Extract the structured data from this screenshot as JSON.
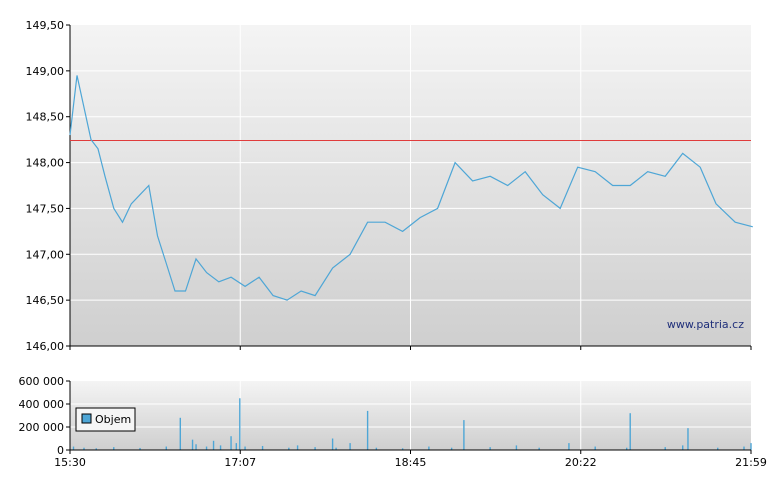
{
  "chart_data": [
    {
      "type": "line",
      "title": "",
      "xlabel": "",
      "ylabel": "",
      "ylim": [
        146.0,
        149.5
      ],
      "y_ticks": [
        "149,50",
        "149,00",
        "148,50",
        "148,00",
        "147,50",
        "147,00",
        "146,50",
        "146,00"
      ],
      "y_tick_values": [
        149.5,
        149.0,
        148.5,
        148.0,
        147.5,
        147.0,
        146.5,
        146.0
      ],
      "x_ticks": [
        "15:30",
        "17:07",
        "18:45",
        "20:22",
        "21:59"
      ],
      "reference_line": {
        "value": 148.24,
        "color": "#e03c3c"
      },
      "line_color": "#4ea6d6",
      "grid": true,
      "watermark": "www.patria.cz",
      "series": [
        {
          "x_minutes": [
            0,
            4,
            8,
            12,
            16,
            20,
            25,
            30,
            35,
            40,
            45,
            50,
            55,
            60,
            66,
            72,
            78,
            85,
            92,
            100,
            108,
            116,
            124,
            132,
            140,
            150,
            160,
            170,
            180,
            190,
            200,
            210,
            220,
            230,
            240,
            250,
            260,
            270,
            280,
            290,
            300,
            310,
            320,
            330,
            340,
            350,
            360,
            369,
            380,
            390
          ],
          "values": [
            148.3,
            148.95,
            148.6,
            148.25,
            148.15,
            147.85,
            147.5,
            147.35,
            147.55,
            147.65,
            147.75,
            147.2,
            146.9,
            146.6,
            146.6,
            146.95,
            146.8,
            146.7,
            146.75,
            146.65,
            146.75,
            146.55,
            146.5,
            146.6,
            146.55,
            146.85,
            147.0,
            147.35,
            147.35,
            147.25,
            147.4,
            147.5,
            148.0,
            147.8,
            147.85,
            147.75,
            147.9,
            147.65,
            147.5,
            147.95,
            147.9,
            147.75,
            147.75,
            147.9,
            147.85,
            148.1,
            147.95,
            147.55,
            147.35,
            147.3
          ]
        }
      ]
    },
    {
      "type": "bar",
      "title": "",
      "xlabel": "",
      "ylabel": "",
      "ylim": [
        0,
        600000
      ],
      "y_ticks": [
        "600 000",
        "400 000",
        "200 000",
        "0"
      ],
      "y_tick_values": [
        600000,
        400000,
        200000,
        0
      ],
      "x_ticks": [
        "15:30",
        "17:07",
        "18:45",
        "20:22",
        "21:59"
      ],
      "bar_color": "#4ea6d6",
      "grid": true,
      "legend": {
        "position": "left",
        "entries": [
          "Objem"
        ]
      },
      "series": [
        {
          "name": "Objem",
          "x_minutes": [
            2,
            8,
            15,
            25,
            40,
            55,
            63,
            70,
            72,
            78,
            82,
            86,
            92,
            95,
            97,
            100,
            110,
            125,
            130,
            140,
            150,
            152,
            160,
            170,
            175,
            190,
            205,
            218,
            225,
            240,
            255,
            268,
            285,
            300,
            318,
            320,
            340,
            350,
            353,
            370,
            385,
            389
          ],
          "values": [
            30000,
            20000,
            15000,
            25000,
            18000,
            30000,
            280000,
            90000,
            50000,
            30000,
            80000,
            40000,
            120000,
            60000,
            450000,
            30000,
            35000,
            20000,
            40000,
            25000,
            100000,
            20000,
            60000,
            340000,
            20000,
            15000,
            30000,
            20000,
            260000,
            25000,
            40000,
            20000,
            60000,
            30000,
            20000,
            320000,
            25000,
            40000,
            190000,
            20000,
            30000,
            60000
          ]
        }
      ]
    }
  ]
}
